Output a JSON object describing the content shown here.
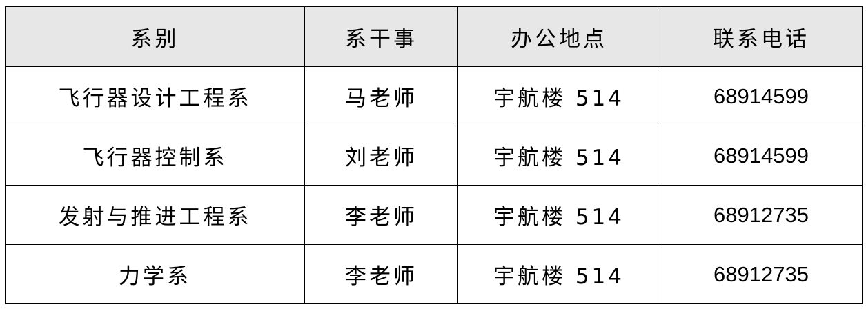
{
  "table": {
    "headers": [
      "系别",
      "系干事",
      "办公地点",
      "联系电话"
    ],
    "rows": [
      {
        "department": "飞行器设计工程系",
        "secretary": "马老师",
        "office": "宇航楼 514",
        "phone": "68914599"
      },
      {
        "department": "飞行器控制系",
        "secretary": "刘老师",
        "office": "宇航楼 514",
        "phone": "68914599"
      },
      {
        "department": "发射与推进工程系",
        "secretary": "李老师",
        "office": "宇航楼 514",
        "phone": "68912735"
      },
      {
        "department": "力学系",
        "secretary": "李老师",
        "office": "宇航楼 514",
        "phone": "68912735"
      }
    ],
    "header_bg": "#e7e7e7"
  }
}
